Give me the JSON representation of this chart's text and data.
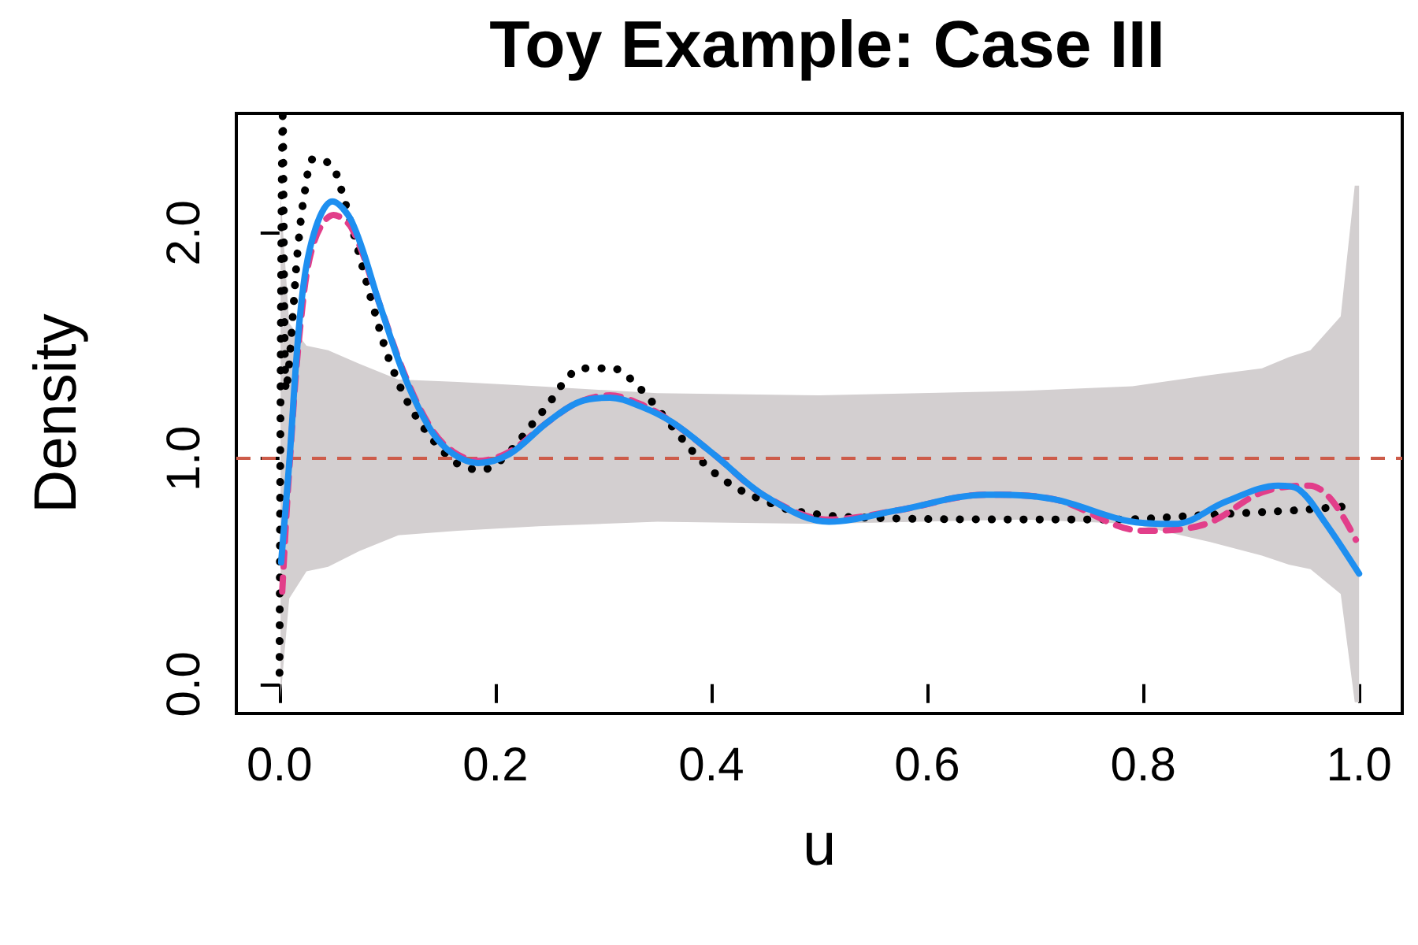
{
  "chart_data": {
    "type": "line",
    "title": "Toy Example: Case III",
    "xlabel": "u",
    "ylabel": "Density",
    "xlim": [
      -0.04,
      1.04
    ],
    "ylim": [
      -0.13,
      2.53
    ],
    "xticks": [
      {
        "value": 0,
        "label": "0.0"
      },
      {
        "value": 0.2,
        "label": "0.2"
      },
      {
        "value": 0.4,
        "label": "0.4"
      },
      {
        "value": 0.6,
        "label": "0.6"
      },
      {
        "value": 0.8,
        "label": "0.8"
      },
      {
        "value": 1,
        "label": "1.0"
      }
    ],
    "yticks": [
      {
        "value": 0,
        "label": "0.0"
      },
      {
        "value": 1,
        "label": "1.0"
      },
      {
        "value": 2,
        "label": "2.0"
      }
    ],
    "grid": false,
    "marker": "none",
    "ref_lines": [
      {
        "axis": "y",
        "value": 1,
        "color": "#cd5c4a",
        "line_style": "dashed"
      }
    ],
    "series": [
      {
        "color": "#d3cfd0",
        "x": [
          0.001,
          0.009,
          0.025,
          0.045,
          0.074,
          0.11,
          0.165,
          0.24,
          0.35,
          0.5,
          0.69,
          0.79,
          0.862,
          0.91,
          0.935,
          0.955,
          0.983,
          0.996,
          1.0
        ],
        "values": [
          null,
          null,
          null,
          null,
          null,
          null,
          null,
          null,
          null,
          null,
          null,
          null,
          null,
          null,
          null,
          null,
          null,
          null,
          null
        ],
        "lower": [
          -0.06,
          0.38,
          0.5,
          0.52,
          0.59,
          0.66,
          0.68,
          0.7,
          0.72,
          0.71,
          0.73,
          0.71,
          0.63,
          0.57,
          0.53,
          0.51,
          0.4,
          -0.08,
          -0.08
        ],
        "upper": [
          2.17,
          1.6,
          1.5,
          1.48,
          1.42,
          1.35,
          1.34,
          1.32,
          1.29,
          1.28,
          1.3,
          1.32,
          1.37,
          1.4,
          1.45,
          1.48,
          1.63,
          2.21,
          2.21
        ]
      },
      {
        "color": "#000000",
        "line_style": "dotted",
        "x": [
          0.0,
          0.003,
          0.006,
          0.009,
          0.013,
          0.017,
          0.024,
          0.032,
          0.048,
          0.058,
          0.073,
          0.087,
          0.103,
          0.126,
          0.161,
          0.187,
          0.209,
          0.244,
          0.282,
          0.308,
          0.33,
          0.364,
          0.383,
          0.402,
          0.427,
          0.451,
          0.475,
          0.531,
          0.692,
          0.775,
          0.858,
          0.939,
          0.967,
          0.993
        ],
        "values": [
          0.05,
          2.52,
          1.3,
          1.42,
          1.68,
          1.93,
          2.2,
          2.33,
          2.3,
          2.18,
          1.92,
          1.67,
          1.42,
          1.19,
          0.99,
          0.95,
          1.01,
          1.21,
          1.4,
          1.4,
          1.33,
          1.14,
          1.03,
          0.94,
          0.86,
          0.81,
          0.77,
          0.74,
          0.73,
          0.73,
          0.75,
          0.77,
          0.78,
          0.79
        ]
      },
      {
        "color": "#e23e8a",
        "line_style": "dashed",
        "x": [
          0.0025,
          0.009,
          0.02,
          0.032,
          0.05,
          0.067,
          0.093,
          0.117,
          0.141,
          0.161,
          0.184,
          0.213,
          0.248,
          0.277,
          0.306,
          0.335,
          0.364,
          0.402,
          0.451,
          0.509,
          0.572,
          0.655,
          0.717,
          0.8,
          0.858,
          0.91,
          0.954,
          0.974,
          0.997
        ],
        "values": [
          0.41,
          0.95,
          1.62,
          1.96,
          2.08,
          2.02,
          1.68,
          1.36,
          1.13,
          1.03,
          0.99,
          1.03,
          1.16,
          1.25,
          1.28,
          1.24,
          1.16,
          1.02,
          0.83,
          0.73,
          0.77,
          0.84,
          0.82,
          0.68,
          0.71,
          0.85,
          0.88,
          0.82,
          0.64
        ]
      },
      {
        "color": "#1e8ff0",
        "line_style": "solid",
        "x": [
          0.0015,
          0.009,
          0.02,
          0.032,
          0.049,
          0.067,
          0.093,
          0.117,
          0.141,
          0.161,
          0.184,
          0.213,
          0.248,
          0.277,
          0.306,
          0.335,
          0.364,
          0.402,
          0.451,
          0.509,
          0.572,
          0.655,
          0.717,
          0.79,
          0.829,
          0.877,
          0.925,
          0.945,
          0.968,
          1.0
        ],
        "values": [
          0.54,
          0.98,
          1.68,
          2.0,
          2.14,
          2.05,
          1.68,
          1.35,
          1.12,
          1.02,
          0.98,
          1.02,
          1.16,
          1.25,
          1.27,
          1.23,
          1.16,
          1.02,
          0.83,
          0.72,
          0.77,
          0.84,
          0.82,
          0.72,
          0.71,
          0.81,
          0.88,
          0.86,
          0.72,
          0.49
        ]
      }
    ]
  }
}
